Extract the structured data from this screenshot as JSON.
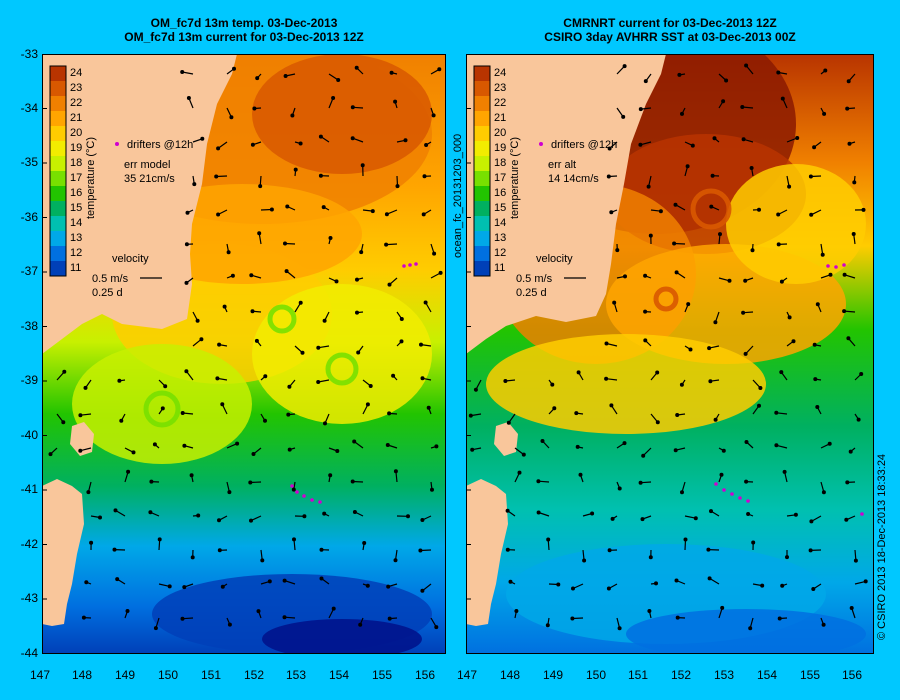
{
  "panels": [
    {
      "title_line1": "OM_fc7d 13m temp. 03-Dec-2013",
      "title_line2": "OM_fc7d 13m current for 03-Dec-2013 12Z",
      "colorbar_label": "temperature (°C)",
      "drifters_label": "drifters @12h",
      "err_title": "err model",
      "err_value": "35 21cm/s",
      "velocity_title": "velocity",
      "velocity_scale": "0.5 m/s",
      "velocity_time": "0.25 d"
    },
    {
      "title_line1": "CMRNRT current for 03-Dec-2013 12Z",
      "title_line2": "CSIRO 3day AVHRR SST at 03-Dec-2013 00Z",
      "colorbar_label": "temperature (°C)",
      "drifters_label": "drifters @12h",
      "err_title": "err alt",
      "err_value": "14 14cm/s",
      "velocity_title": "velocity",
      "velocity_scale": "0.5 m/s",
      "velocity_time": "0.25 d"
    }
  ],
  "colorbar_ticks": [
    "24",
    "23",
    "22",
    "21",
    "20",
    "19",
    "18",
    "17",
    "16",
    "15",
    "14",
    "13",
    "12",
    "11"
  ],
  "lat_labels": [
    "-33",
    "-34",
    "-35",
    "-36",
    "-37",
    "-38",
    "-39",
    "-40",
    "-41",
    "-42",
    "-43",
    "-44"
  ],
  "lon_labels": [
    "147",
    "148",
    "149",
    "150",
    "151",
    "152",
    "153",
    "154",
    "155",
    "156"
  ],
  "product_id": "ocean_fc_20131203_000",
  "credit": "© CSIRO 2013   18-Dec-2013 18:33:24",
  "colors": {
    "background": "#00c8ff",
    "land": "#f9c69b",
    "drifter": "#d000d0"
  },
  "colormap": [
    "#8b1a00",
    "#b83400",
    "#d85800",
    "#f08000",
    "#ffa500",
    "#ffcc00",
    "#f2ec00",
    "#c8f000",
    "#78e000",
    "#22c400",
    "#00b060",
    "#00c0b0",
    "#00a8e8",
    "#0070e0",
    "#0040b8",
    "#00108a"
  ]
}
